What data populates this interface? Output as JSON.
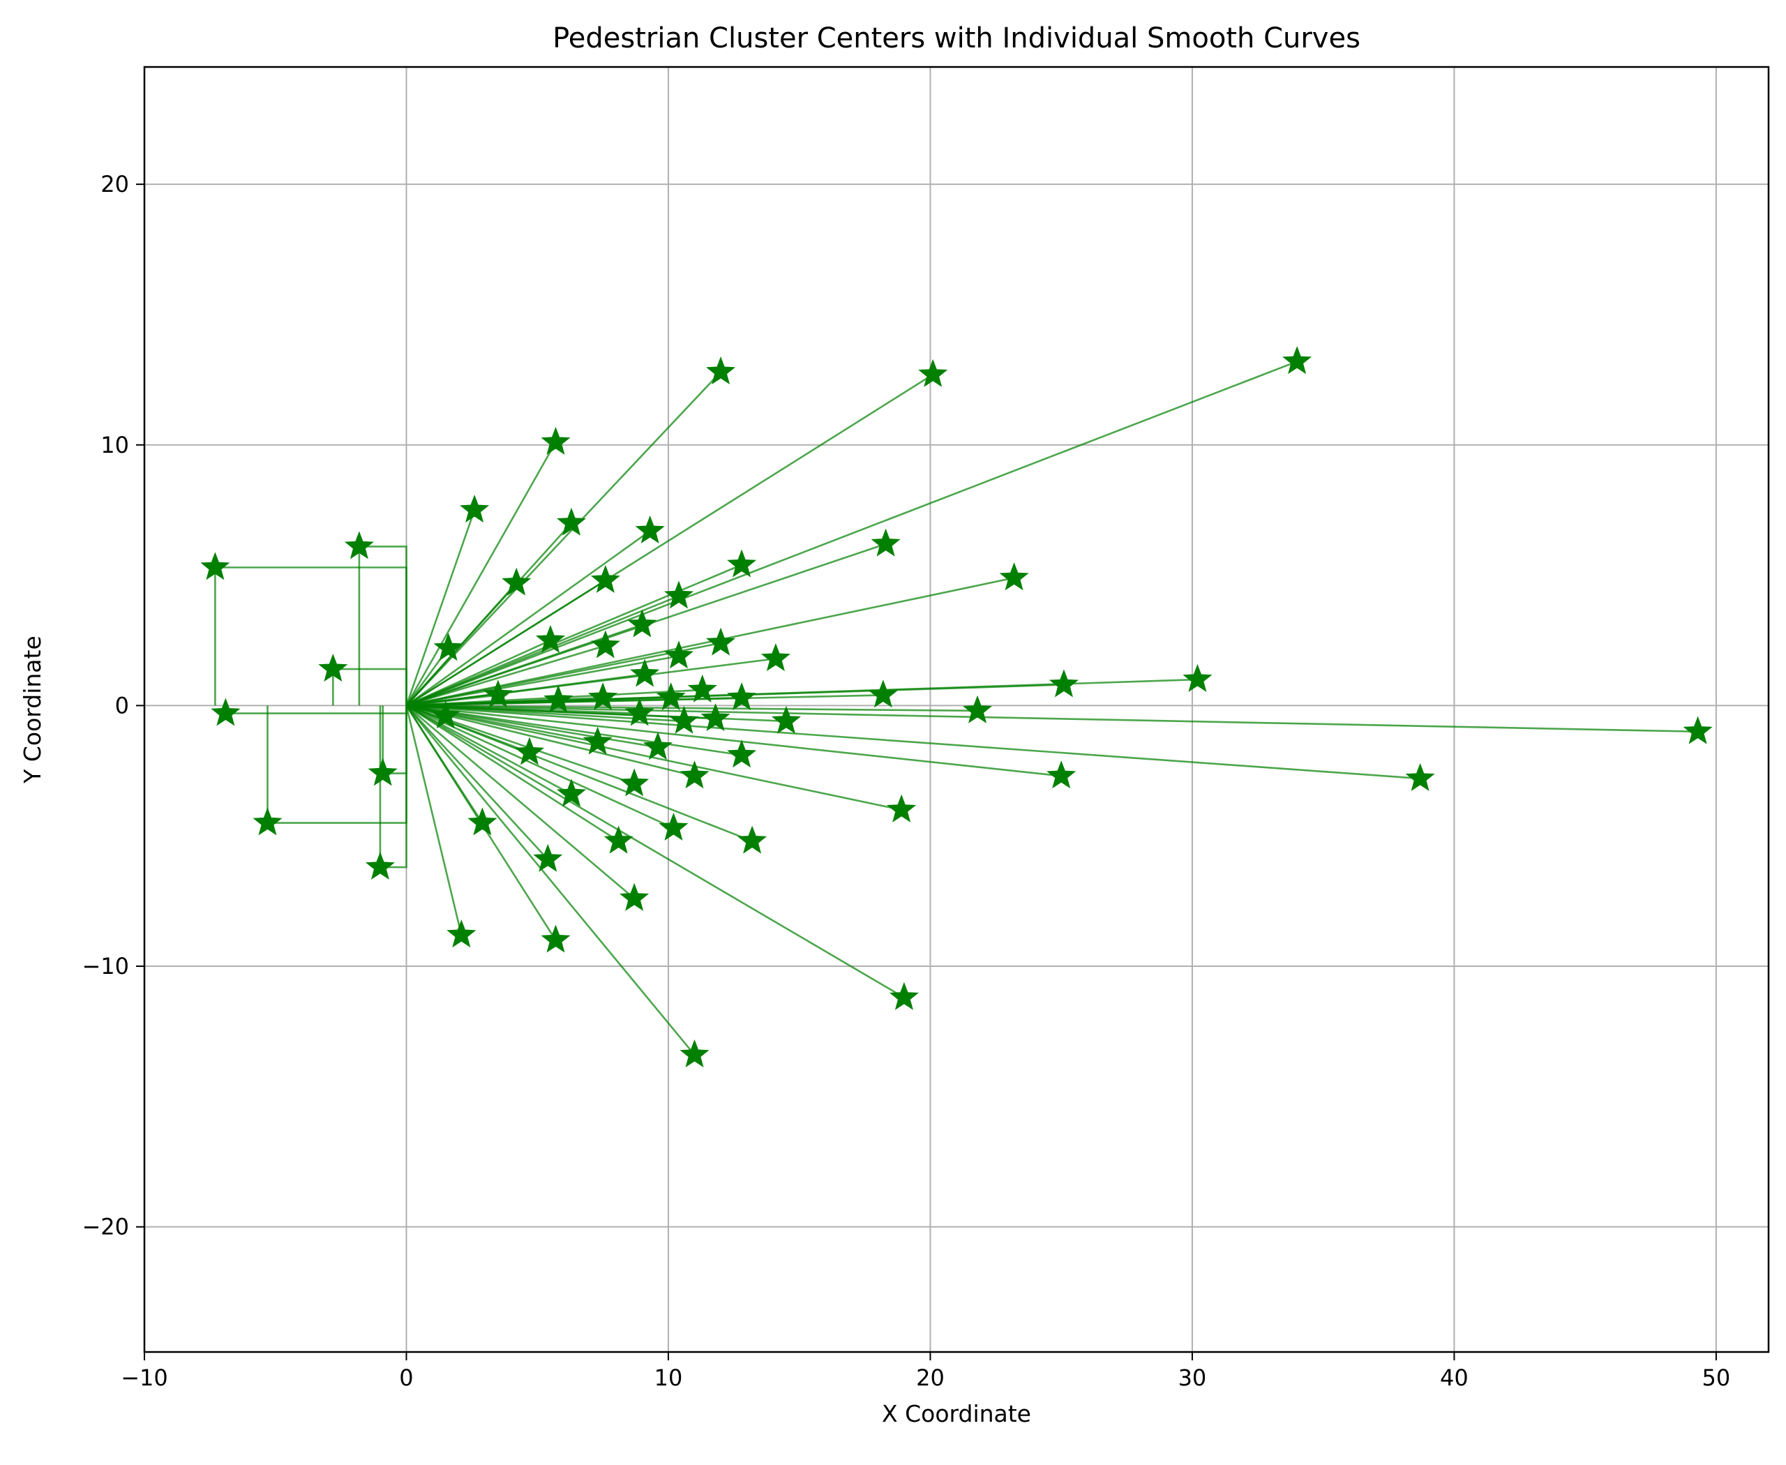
{
  "chart_data": {
    "type": "scatter",
    "title": "Pedestrian Cluster Centers with Individual Smooth Curves",
    "xlabel": "X Coordinate",
    "ylabel": "Y Coordinate",
    "xlim": [
      -10,
      52
    ],
    "ylim": [
      -24.8,
      24.5
    ],
    "xticks": [
      -10,
      0,
      10,
      20,
      30,
      40,
      50
    ],
    "yticks": [
      -20,
      -10,
      0,
      10,
      20
    ],
    "xtick_labels": [
      "−10",
      "0",
      "10",
      "20",
      "30",
      "40",
      "50"
    ],
    "ytick_labels": [
      "−20",
      "−10",
      "0",
      "10",
      "20"
    ],
    "grid": true,
    "origin": [
      0,
      0
    ],
    "marker": "star",
    "color": "#008000",
    "line_color": "#008000",
    "points": [
      [
        12.0,
        12.8
      ],
      [
        20.1,
        12.7
      ],
      [
        34.0,
        13.2
      ],
      [
        5.7,
        10.1
      ],
      [
        2.6,
        7.5
      ],
      [
        6.3,
        7.0
      ],
      [
        9.3,
        6.7
      ],
      [
        18.3,
        6.2
      ],
      [
        12.8,
        5.4
      ],
      [
        23.2,
        4.9
      ],
      [
        4.2,
        4.7
      ],
      [
        7.6,
        4.8
      ],
      [
        10.4,
        4.2
      ],
      [
        9.0,
        3.1
      ],
      [
        1.6,
        2.2
      ],
      [
        5.5,
        2.5
      ],
      [
        7.6,
        2.3
      ],
      [
        12.0,
        2.4
      ],
      [
        10.4,
        1.9
      ],
      [
        14.1,
        1.8
      ],
      [
        9.1,
        1.2
      ],
      [
        3.5,
        0.4
      ],
      [
        5.8,
        0.2
      ],
      [
        7.5,
        0.3
      ],
      [
        10.1,
        0.3
      ],
      [
        11.3,
        0.6
      ],
      [
        12.8,
        0.3
      ],
      [
        18.2,
        0.4
      ],
      [
        25.1,
        0.8
      ],
      [
        30.2,
        1.0
      ],
      [
        21.8,
        -0.2
      ],
      [
        49.3,
        -1.0
      ],
      [
        1.5,
        -0.4
      ],
      [
        8.9,
        -0.3
      ],
      [
        10.6,
        -0.6
      ],
      [
        11.8,
        -0.5
      ],
      [
        14.5,
        -0.6
      ],
      [
        7.3,
        -1.4
      ],
      [
        9.6,
        -1.6
      ],
      [
        12.8,
        -1.9
      ],
      [
        4.7,
        -1.8
      ],
      [
        6.3,
        -3.4
      ],
      [
        8.7,
        -3.0
      ],
      [
        11.0,
        -2.7
      ],
      [
        25.0,
        -2.7
      ],
      [
        38.7,
        -2.8
      ],
      [
        18.9,
        -4.0
      ],
      [
        2.9,
        -4.5
      ],
      [
        10.2,
        -4.7
      ],
      [
        8.1,
        -5.2
      ],
      [
        13.2,
        -5.2
      ],
      [
        5.4,
        -5.9
      ],
      [
        8.7,
        -7.4
      ],
      [
        2.1,
        -8.8
      ],
      [
        5.7,
        -9.0
      ],
      [
        19.0,
        -11.2
      ],
      [
        11.0,
        -13.4
      ]
    ],
    "elbow_points": [
      [
        -7.3,
        5.3
      ],
      [
        -1.8,
        6.1
      ],
      [
        -2.8,
        1.4
      ],
      [
        -6.9,
        -0.3
      ],
      [
        -5.3,
        -4.5
      ],
      [
        -0.9,
        -2.6
      ],
      [
        -1.0,
        -6.2
      ]
    ]
  }
}
